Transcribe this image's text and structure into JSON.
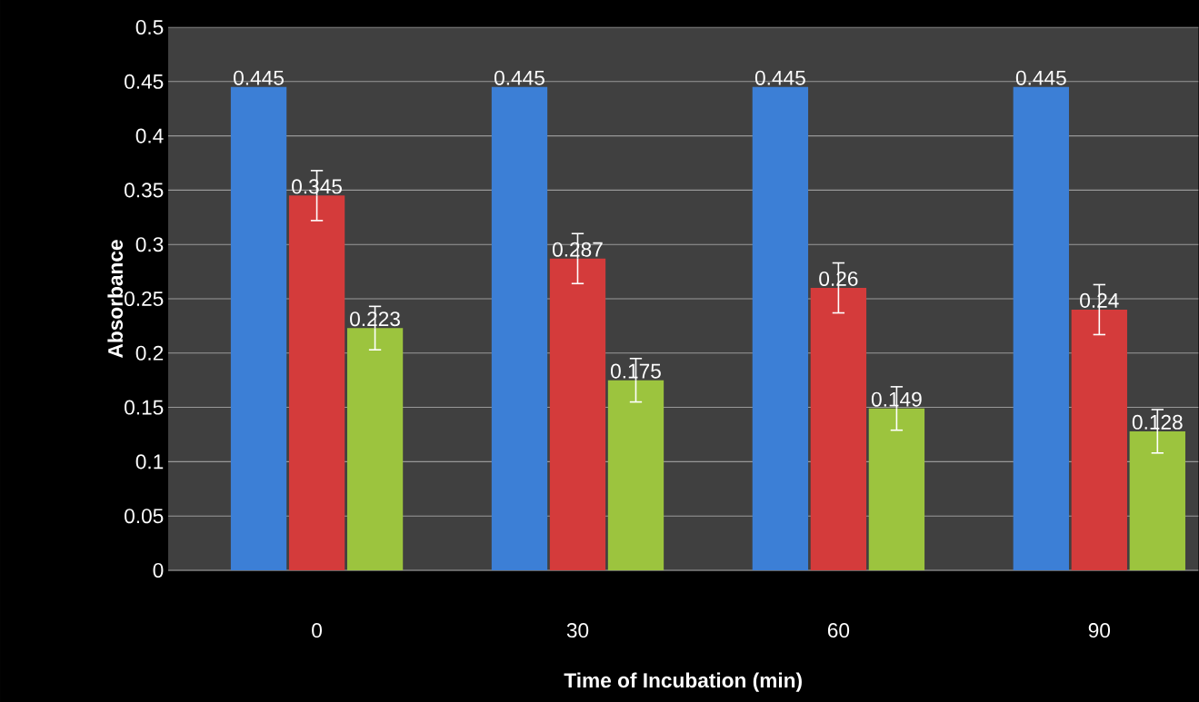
{
  "chart_data": {
    "type": "bar",
    "xlabel": "Time of Incubation (min)",
    "ylabel": "Absorbance",
    "categories": [
      "0",
      "30",
      "60",
      "90"
    ],
    "series": [
      {
        "color": "#3c7fd6",
        "values": [
          0.445,
          0.445,
          0.445,
          0.445
        ]
      },
      {
        "color": "#d43b3b",
        "values": [
          0.345,
          0.287,
          0.26,
          0.24
        ],
        "errors": [
          0.023,
          0.023,
          0.023,
          0.023
        ]
      },
      {
        "color": "#9cc43e",
        "values": [
          0.223,
          0.175,
          0.149,
          0.128
        ],
        "errors": [
          0.02,
          0.02,
          0.02,
          0.02
        ]
      }
    ],
    "ylim": [
      0,
      0.5
    ],
    "yticks": [
      0,
      0.05,
      0.1,
      0.15,
      0.2,
      0.25,
      0.3,
      0.35,
      0.4,
      0.45,
      0.5
    ],
    "grid": "y",
    "data_labels": true
  }
}
